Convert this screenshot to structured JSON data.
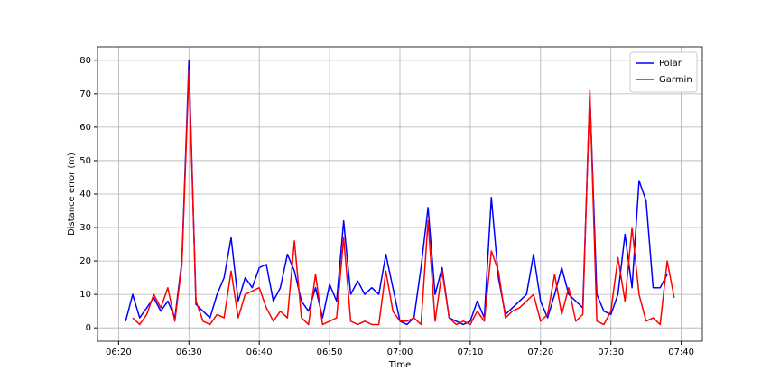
{
  "chart_data": {
    "type": "line",
    "xlabel": "Time",
    "ylabel": "Distance error (m)",
    "x": [
      "06:21",
      "06:22",
      "06:23",
      "06:24",
      "06:25",
      "06:26",
      "06:27",
      "06:28",
      "06:29",
      "06:30",
      "06:31",
      "06:32",
      "06:33",
      "06:34",
      "06:35",
      "06:36",
      "06:37",
      "06:38",
      "06:39",
      "06:40",
      "06:41",
      "06:42",
      "06:43",
      "06:44",
      "06:45",
      "06:46",
      "06:47",
      "06:48",
      "06:49",
      "06:50",
      "06:51",
      "06:52",
      "06:53",
      "06:54",
      "06:55",
      "06:56",
      "06:57",
      "06:58",
      "06:59",
      "07:00",
      "07:01",
      "07:02",
      "07:03",
      "07:04",
      "07:05",
      "07:06",
      "07:07",
      "07:08",
      "07:09",
      "07:10",
      "07:11",
      "07:12",
      "07:13",
      "07:14",
      "07:15",
      "07:16",
      "07:17",
      "07:18",
      "07:19",
      "07:20",
      "07:21",
      "07:22",
      "07:23",
      "07:24",
      "07:25",
      "07:26",
      "07:27",
      "07:28",
      "07:29",
      "07:30",
      "07:31",
      "07:32",
      "07:33",
      "07:34",
      "07:35",
      "07:36",
      "07:37",
      "07:38",
      "07:39"
    ],
    "series": [
      {
        "name": "Polar",
        "color": "#0000ff",
        "values": [
          2,
          10,
          3,
          6,
          9,
          5,
          8,
          3,
          20,
          80,
          7,
          5,
          3,
          10,
          15,
          27,
          8,
          15,
          12,
          18,
          19,
          8,
          12,
          22,
          17,
          8,
          5,
          12,
          3,
          13,
          8,
          32,
          10,
          14,
          10,
          12,
          10,
          22,
          12,
          2,
          1,
          3,
          18,
          36,
          10,
          18,
          3,
          2,
          1,
          2,
          8,
          3,
          39,
          15,
          4,
          6,
          8,
          10,
          22,
          8,
          3,
          10,
          18,
          10,
          8,
          6,
          70,
          10,
          5,
          4,
          10,
          28,
          12,
          44,
          38,
          12,
          12,
          16,
          null
        ]
      },
      {
        "name": "Garmin",
        "color": "#ff0000",
        "values": [
          null,
          3,
          1,
          4,
          10,
          6,
          12,
          2,
          19,
          77,
          8,
          2,
          1,
          4,
          3,
          17,
          3,
          10,
          11,
          12,
          6,
          2,
          5,
          3,
          26,
          3,
          1,
          16,
          1,
          2,
          3,
          27,
          2,
          1,
          2,
          1,
          1,
          17,
          5,
          2,
          2,
          3,
          1,
          32,
          2,
          17,
          3,
          1,
          2,
          1,
          5,
          2,
          23,
          17,
          3,
          5,
          6,
          8,
          10,
          2,
          4,
          16,
          4,
          12,
          2,
          4,
          71,
          2,
          1,
          5,
          21,
          8,
          30,
          10,
          2,
          3,
          1,
          20,
          9
        ]
      }
    ],
    "xlim": [
      "06:17",
      "07:43"
    ],
    "xticks": [
      "06:20",
      "06:30",
      "06:40",
      "06:50",
      "07:00",
      "07:10",
      "07:20",
      "07:30",
      "07:40"
    ],
    "ylim": [
      -4,
      84
    ],
    "yticks": [
      0,
      10,
      20,
      30,
      40,
      50,
      60,
      70,
      80
    ],
    "grid": true,
    "legend": "upper right"
  }
}
